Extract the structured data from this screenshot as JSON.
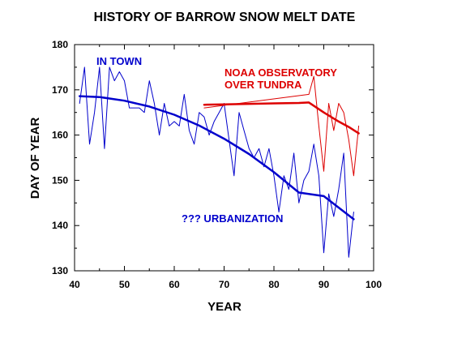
{
  "chart_data": {
    "type": "line",
    "title": "HISTORY OF BARROW SNOW MELT DATE",
    "xlabel": "YEAR",
    "ylabel": "DAY OF YEAR",
    "xlim": [
      40,
      100
    ],
    "ylim": [
      130,
      180
    ],
    "x_ticks": [
      40,
      50,
      60,
      70,
      80,
      90,
      100
    ],
    "y_ticks": [
      130,
      140,
      150,
      160,
      170,
      180
    ],
    "grid": false,
    "colors": {
      "town": "#0000cc",
      "tundra": "#dd0000",
      "axes": "#000000"
    },
    "annotations": [
      {
        "text": "IN TOWN",
        "color": "#0000cc"
      },
      {
        "text": "NOAA OBSERVATORY",
        "color": "#dd0000"
      },
      {
        "text": "OVER TUNDRA",
        "color": "#dd0000"
      },
      {
        "text": "??? URBANIZATION",
        "color": "#0000cc"
      }
    ],
    "series": [
      {
        "key": "town_obs",
        "color": "#0000cc",
        "width": 1,
        "x": [
          41,
          42,
          43,
          44,
          45,
          46,
          47,
          48,
          49,
          50,
          51,
          52,
          53,
          54,
          55,
          56,
          57,
          58,
          59,
          60,
          61,
          62,
          63,
          64,
          65,
          66,
          67,
          68,
          69,
          70,
          71,
          72,
          73,
          74,
          75,
          76,
          77,
          78,
          79,
          80,
          81,
          82,
          83,
          84,
          85,
          86,
          87,
          88,
          89,
          90,
          91,
          92,
          93,
          94,
          95,
          96
        ],
        "values": [
          167,
          175,
          158,
          165,
          175,
          157,
          175,
          172,
          174,
          172,
          166,
          166,
          166,
          165,
          172,
          167,
          160,
          167,
          162,
          163,
          162,
          169,
          161,
          158,
          165,
          164,
          160,
          163,
          165,
          167,
          159,
          151,
          165,
          161,
          157,
          155,
          157,
          153,
          157,
          151,
          143,
          151,
          148,
          156,
          145,
          150,
          152,
          158,
          151,
          134,
          147,
          142,
          148,
          156,
          133,
          143
        ]
      },
      {
        "key": "town_trend",
        "color": "#0000cc",
        "width": 2.5,
        "x": [
          41,
          45,
          50,
          55,
          60,
          65,
          70,
          75,
          80,
          85,
          90,
          96
        ],
        "values": [
          168.6,
          168.4,
          167.6,
          166.3,
          164.5,
          162.1,
          159.2,
          155.8,
          151.8,
          147.3,
          146.5,
          141.4
        ]
      },
      {
        "key": "tundra_obs",
        "color": "#dd0000",
        "width": 1,
        "x": [
          66,
          87,
          88,
          89,
          90,
          91,
          92,
          93,
          94,
          95,
          96,
          97
        ],
        "values": [
          166,
          169,
          173,
          162,
          152,
          167,
          161,
          167,
          165,
          159,
          151,
          162
        ]
      },
      {
        "key": "tundra_trend",
        "color": "#dd0000",
        "width": 2.5,
        "x": [
          66,
          70,
          75,
          80,
          85,
          87,
          90,
          93,
          95,
          97
        ],
        "values": [
          166.7,
          166.8,
          166.9,
          167.0,
          167.1,
          167.2,
          165.0,
          163.0,
          161.8,
          160.4
        ]
      }
    ]
  }
}
